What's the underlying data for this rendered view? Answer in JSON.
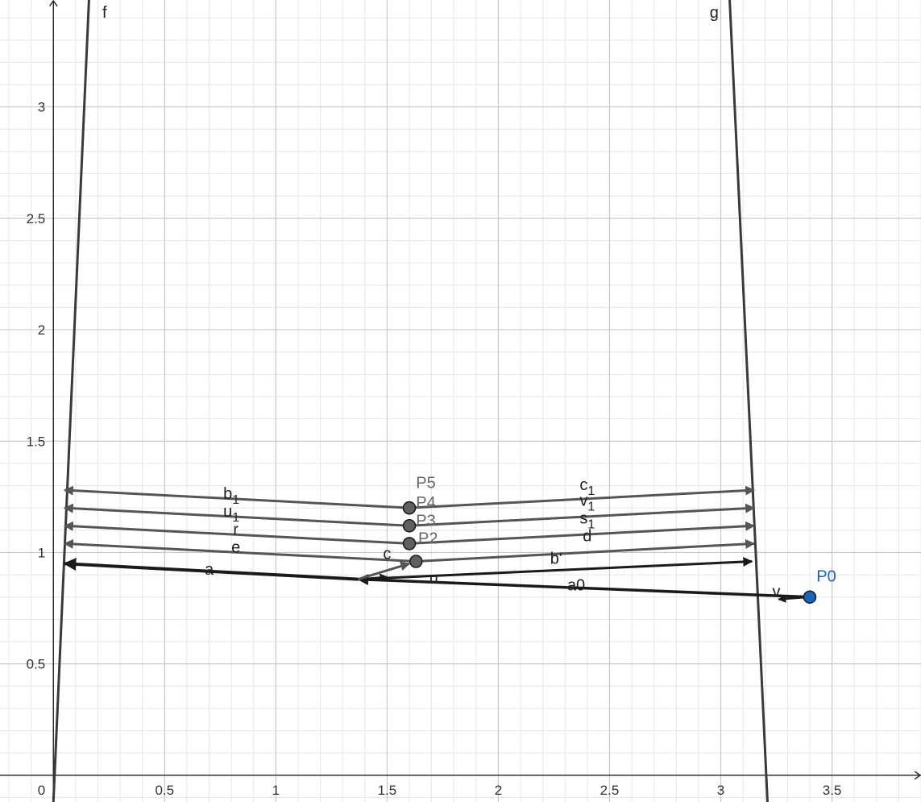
{
  "view": {
    "x_range": [
      -0.24,
      3.9
    ],
    "y_range": [
      -0.12,
      3.48
    ],
    "minor_step": 0.1,
    "major_step": 0.5
  },
  "axes": {
    "origin_label": "0",
    "x_ticks": [
      {
        "value": 0.5,
        "label": "0.5"
      },
      {
        "value": 1,
        "label": "1"
      },
      {
        "value": 1.5,
        "label": "1.5"
      },
      {
        "value": 2,
        "label": "2"
      },
      {
        "value": 2.5,
        "label": "2.5"
      },
      {
        "value": 3,
        "label": "3"
      },
      {
        "value": 3.5,
        "label": "3.5"
      }
    ],
    "y_ticks": [
      {
        "value": 0.5,
        "label": "0.5"
      },
      {
        "value": 1,
        "label": "1"
      },
      {
        "value": 1.5,
        "label": "1.5"
      },
      {
        "value": 2,
        "label": "2"
      },
      {
        "value": 2.5,
        "label": "2.5"
      },
      {
        "value": 3,
        "label": "3"
      }
    ]
  },
  "colors": {
    "axis": "#222222",
    "grid_major": "#c8c8c8",
    "grid_minor": "#e6e6e6",
    "curve": "#3a3a3a",
    "vector_dark": "#1a1a1a",
    "vector_gray": "#555555",
    "point_gray": "#606060",
    "point_blue": "#1565c0",
    "label_gray": "#666666",
    "label_blue": "#1565c0"
  },
  "curves": [
    {
      "name": "f",
      "label": "f",
      "from": [
        0,
        -0.12
      ],
      "to": [
        0.16,
        3.48
      ],
      "label_at": [
        0.22,
        3.4
      ]
    },
    {
      "name": "g",
      "label": "g",
      "from": [
        3.21,
        -0.12
      ],
      "to": [
        3.04,
        3.48
      ],
      "label_at": [
        2.95,
        3.4
      ]
    }
  ],
  "points": [
    {
      "name": "P0",
      "label": "P0",
      "x": 3.4,
      "y": 0.8,
      "color": "blue",
      "label_at": [
        3.43,
        0.87
      ]
    },
    {
      "name": "P1",
      "label": "",
      "x": 1.63,
      "y": 0.96,
      "color": "gray"
    },
    {
      "name": "P2",
      "label": "P2",
      "x": 1.6,
      "y": 1.04,
      "color": "gray",
      "label_at": [
        1.64,
        1.04
      ]
    },
    {
      "name": "P3",
      "label": "P3",
      "x": 1.6,
      "y": 1.12,
      "color": "gray",
      "label_at": [
        1.63,
        1.12
      ]
    },
    {
      "name": "P4",
      "label": "P4",
      "x": 1.6,
      "y": 1.2,
      "color": "gray",
      "label_at": [
        1.63,
        1.2
      ]
    },
    {
      "name": "P5",
      "label": "P5",
      "x": 1.6,
      "y": 1.2,
      "color": "gray",
      "label_at": [
        1.63,
        1.29
      ]
    }
  ],
  "vectors": [
    {
      "name": "a0",
      "label": "a0",
      "from": [
        3.4,
        0.8
      ],
      "to": [
        1.37,
        0.88
      ],
      "tone": "dark",
      "width": 3.5,
      "label_at": [
        2.35,
        0.83
      ]
    },
    {
      "name": "v",
      "label": "v",
      "from": [
        3.4,
        0.8
      ],
      "to": [
        3.26,
        0.79
      ],
      "tone": "dark",
      "width": 2.5,
      "label_at": [
        3.25,
        0.8
      ]
    },
    {
      "name": "a",
      "label": "a",
      "from": [
        1.37,
        0.88
      ],
      "to": [
        0.05,
        0.95
      ],
      "tone": "dark",
      "width": 4,
      "label_at": [
        0.7,
        0.9
      ]
    },
    {
      "name": "u",
      "label": "u",
      "from": [
        1.37,
        0.88
      ],
      "to": [
        1.5,
        0.89
      ],
      "tone": "dark",
      "width": 2.5,
      "label_at": [
        1.71,
        0.86
      ]
    },
    {
      "name": "b-prime",
      "label": "b'",
      "from": [
        1.37,
        0.88
      ],
      "to": [
        3.14,
        0.96
      ],
      "tone": "dark",
      "width": 3,
      "label_at": [
        2.26,
        0.95
      ]
    },
    {
      "name": "c",
      "label": "c",
      "from": [
        1.37,
        0.88
      ],
      "to": [
        1.6,
        0.95
      ],
      "tone": "gray",
      "width": 3,
      "label_at": [
        1.5,
        0.97
      ]
    },
    {
      "name": "e",
      "label": "e",
      "from": [
        1.63,
        0.96
      ],
      "to": [
        0.05,
        1.04
      ],
      "tone": "gray",
      "width": 3,
      "label_at": [
        0.82,
        1.0
      ]
    },
    {
      "name": "d",
      "label": "d",
      "from": [
        1.63,
        0.96
      ],
      "to": [
        3.15,
        1.04
      ],
      "tone": "gray",
      "width": 3,
      "label_at": [
        2.4,
        1.05
      ]
    },
    {
      "name": "r",
      "label": "r",
      "from": [
        1.6,
        1.04
      ],
      "to": [
        0.05,
        1.12
      ],
      "tone": "gray",
      "width": 3,
      "label_at": [
        0.82,
        1.08
      ]
    },
    {
      "name": "s1",
      "label": "s",
      "sub": "1",
      "from": [
        1.6,
        1.04
      ],
      "to": [
        3.15,
        1.12
      ],
      "tone": "gray",
      "width": 3,
      "label_at": [
        2.4,
        1.13
      ]
    },
    {
      "name": "u1",
      "label": "u",
      "sub": "1",
      "from": [
        1.6,
        1.12
      ],
      "to": [
        0.05,
        1.2
      ],
      "tone": "gray",
      "width": 3,
      "label_at": [
        0.8,
        1.16
      ]
    },
    {
      "name": "v1",
      "label": "v",
      "sub": "1",
      "from": [
        1.6,
        1.12
      ],
      "to": [
        3.15,
        1.2
      ],
      "tone": "gray",
      "width": 3,
      "label_at": [
        2.4,
        1.21
      ]
    },
    {
      "name": "b1",
      "label": "b",
      "sub": "1",
      "from": [
        1.6,
        1.2
      ],
      "to": [
        0.05,
        1.28
      ],
      "tone": "gray",
      "width": 3,
      "label_at": [
        0.8,
        1.24
      ]
    },
    {
      "name": "c1",
      "label": "c",
      "sub": "1",
      "from": [
        1.6,
        1.2
      ],
      "to": [
        3.15,
        1.28
      ],
      "tone": "gray",
      "width": 3,
      "label_at": [
        2.4,
        1.28
      ]
    }
  ]
}
